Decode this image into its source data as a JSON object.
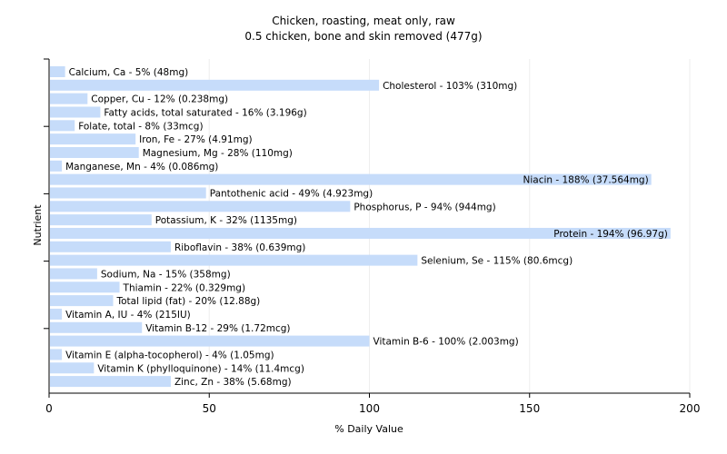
{
  "chart_data": {
    "type": "bar",
    "orientation": "horizontal",
    "title": "Chicken, roasting, meat only, raw",
    "subtitle": "0.5 chicken, bone and skin removed (477g)",
    "xlabel": "% Daily Value",
    "ylabel": "Nutrient",
    "xlim": [
      0,
      200
    ],
    "xticks": [
      0,
      50,
      100,
      150,
      200
    ],
    "grid": true,
    "bar_color": "#c6dcfa",
    "grid_color": "#eeeeee",
    "axis_color": "#000000",
    "categories": [
      "Calcium, Ca",
      "Cholesterol",
      "Copper, Cu",
      "Fatty acids, total saturated",
      "Folate, total",
      "Iron, Fe",
      "Magnesium, Mg",
      "Manganese, Mn",
      "Niacin",
      "Pantothenic acid",
      "Phosphorus, P",
      "Potassium, K",
      "Protein",
      "Riboflavin",
      "Selenium, Se",
      "Sodium, Na",
      "Thiamin",
      "Total lipid (fat)",
      "Vitamin A, IU",
      "Vitamin B-12",
      "Vitamin B-6",
      "Vitamin E (alpha-tocopherol)",
      "Vitamin K (phylloquinone)",
      "Zinc, Zn"
    ],
    "values": [
      5,
      103,
      12,
      16,
      8,
      27,
      28,
      4,
      188,
      49,
      94,
      32,
      194,
      38,
      115,
      15,
      22,
      20,
      4,
      29,
      100,
      4,
      14,
      38
    ],
    "labels": [
      "Calcium, Ca - 5% (48mg)",
      "Cholesterol - 103% (310mg)",
      "Copper, Cu - 12% (0.238mg)",
      "Fatty acids, total saturated - 16% (3.196g)",
      "Folate, total - 8% (33mcg)",
      "Iron, Fe - 27% (4.91mg)",
      "Magnesium, Mg - 28% (110mg)",
      "Manganese, Mn - 4% (0.086mg)",
      "Niacin - 188% (37.564mg)",
      "Pantothenic acid - 49% (4.923mg)",
      "Phosphorus, P - 94% (944mg)",
      "Potassium, K - 32% (1135mg)",
      "Protein - 194% (96.97g)",
      "Riboflavin - 38% (0.639mg)",
      "Selenium, Se - 115% (80.6mcg)",
      "Sodium, Na - 15% (358mg)",
      "Thiamin - 22% (0.329mg)",
      "Total lipid (fat) - 20% (12.88g)",
      "Vitamin A, IU - 4% (215IU)",
      "Vitamin B-12 - 29% (1.72mcg)",
      "Vitamin B-6 - 100% (2.003mg)",
      "Vitamin E (alpha-tocopherol) - 4% (1.05mg)",
      "Vitamin K (phylloquinone) - 14% (11.4mcg)",
      "Zinc, Zn - 38% (5.68mg)"
    ]
  }
}
